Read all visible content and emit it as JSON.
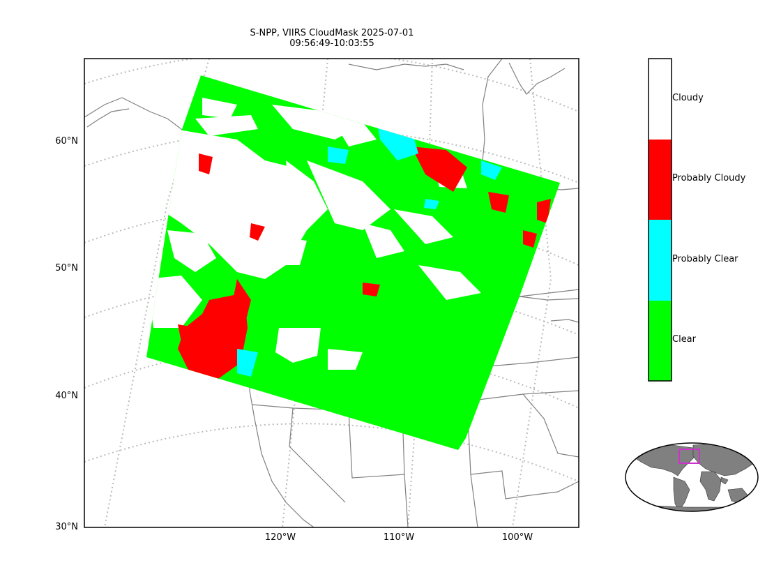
{
  "title": "S-NPP, VIIRS CloudMask 2025-07-01\n09:56:49-10:03:55",
  "map": {
    "lat_ticks": [
      "60°N",
      "50°N",
      "40°N",
      "30°N"
    ],
    "lon_ticks": [
      "120°W",
      "110°W",
      "100°W"
    ]
  },
  "legend": {
    "classes": [
      {
        "label": "Cloudy",
        "color": "#ffffff"
      },
      {
        "label": "Probably Cloudy",
        "color": "#ff0000"
      },
      {
        "label": "Probably Clear",
        "color": "#00ffff"
      },
      {
        "label": "Clear",
        "color": "#00ff00"
      }
    ]
  },
  "colors": {
    "clear": "#00ff00",
    "probably_clear": "#00ffff",
    "probably_cloudy": "#ff0000",
    "cloudy": "#ffffff",
    "coastline": "#808080",
    "graticule": "#bbbbbb",
    "inset_highlight": "#cc33cc"
  }
}
